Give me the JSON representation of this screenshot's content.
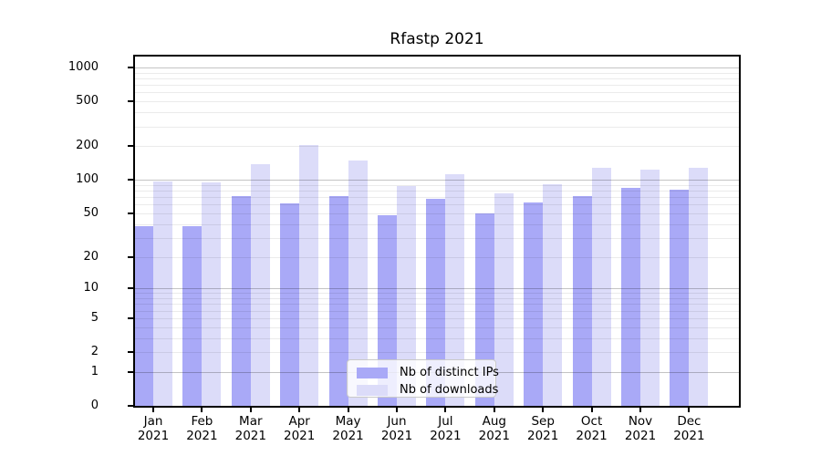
{
  "title": "Rfastp 2021",
  "colors": {
    "ips_bar": "#a9a9f7",
    "downloads_bar": "#dcdcf9",
    "axis": "#000000",
    "grid_major": "rgba(0,0,0,0.23)",
    "grid_minor": "rgba(0,0,0,0.08)",
    "legend_bg": "rgba(255,255,255,0.8)",
    "legend_border": "#c9c9c9",
    "text": "#000000"
  },
  "chart_data": {
    "type": "bar",
    "title": "Rfastp 2021",
    "scale": "log1p",
    "xlabel": "",
    "ylabel": "",
    "ylim": [
      0,
      1250
    ],
    "grid": true,
    "legend_position": "lower center",
    "y_ticks": [
      1000,
      500,
      200,
      100,
      50,
      20,
      10,
      5,
      2,
      1,
      0
    ],
    "months": [
      "Jan",
      "Feb",
      "Mar",
      "Apr",
      "May",
      "Jun",
      "Jul",
      "Aug",
      "Sep",
      "Oct",
      "Nov",
      "Dec"
    ],
    "year": "2021",
    "categories": [
      "Jan 2021",
      "Feb 2021",
      "Mar 2021",
      "Apr 2021",
      "May 2021",
      "Jun 2021",
      "Jul 2021",
      "Aug 2021",
      "Sep 2021",
      "Oct 2021",
      "Nov 2021",
      "Dec 2021"
    ],
    "series": [
      {
        "name": "Nb of distinct IPs",
        "color": "#a9a9f7",
        "values": [
          38,
          38,
          71,
          62,
          72,
          48,
          67,
          50,
          63,
          71,
          84,
          81
        ]
      },
      {
        "name": "Nb of downloads",
        "color": "#dcdcf9",
        "values": [
          97,
          94,
          137,
          205,
          150,
          88,
          112,
          76,
          91,
          127,
          124,
          128
        ]
      }
    ]
  },
  "legend": {
    "items": [
      {
        "label": "Nb of distinct IPs",
        "color": "#a9a9f7"
      },
      {
        "label": "Nb of downloads",
        "color": "#dcdcf9"
      }
    ]
  }
}
